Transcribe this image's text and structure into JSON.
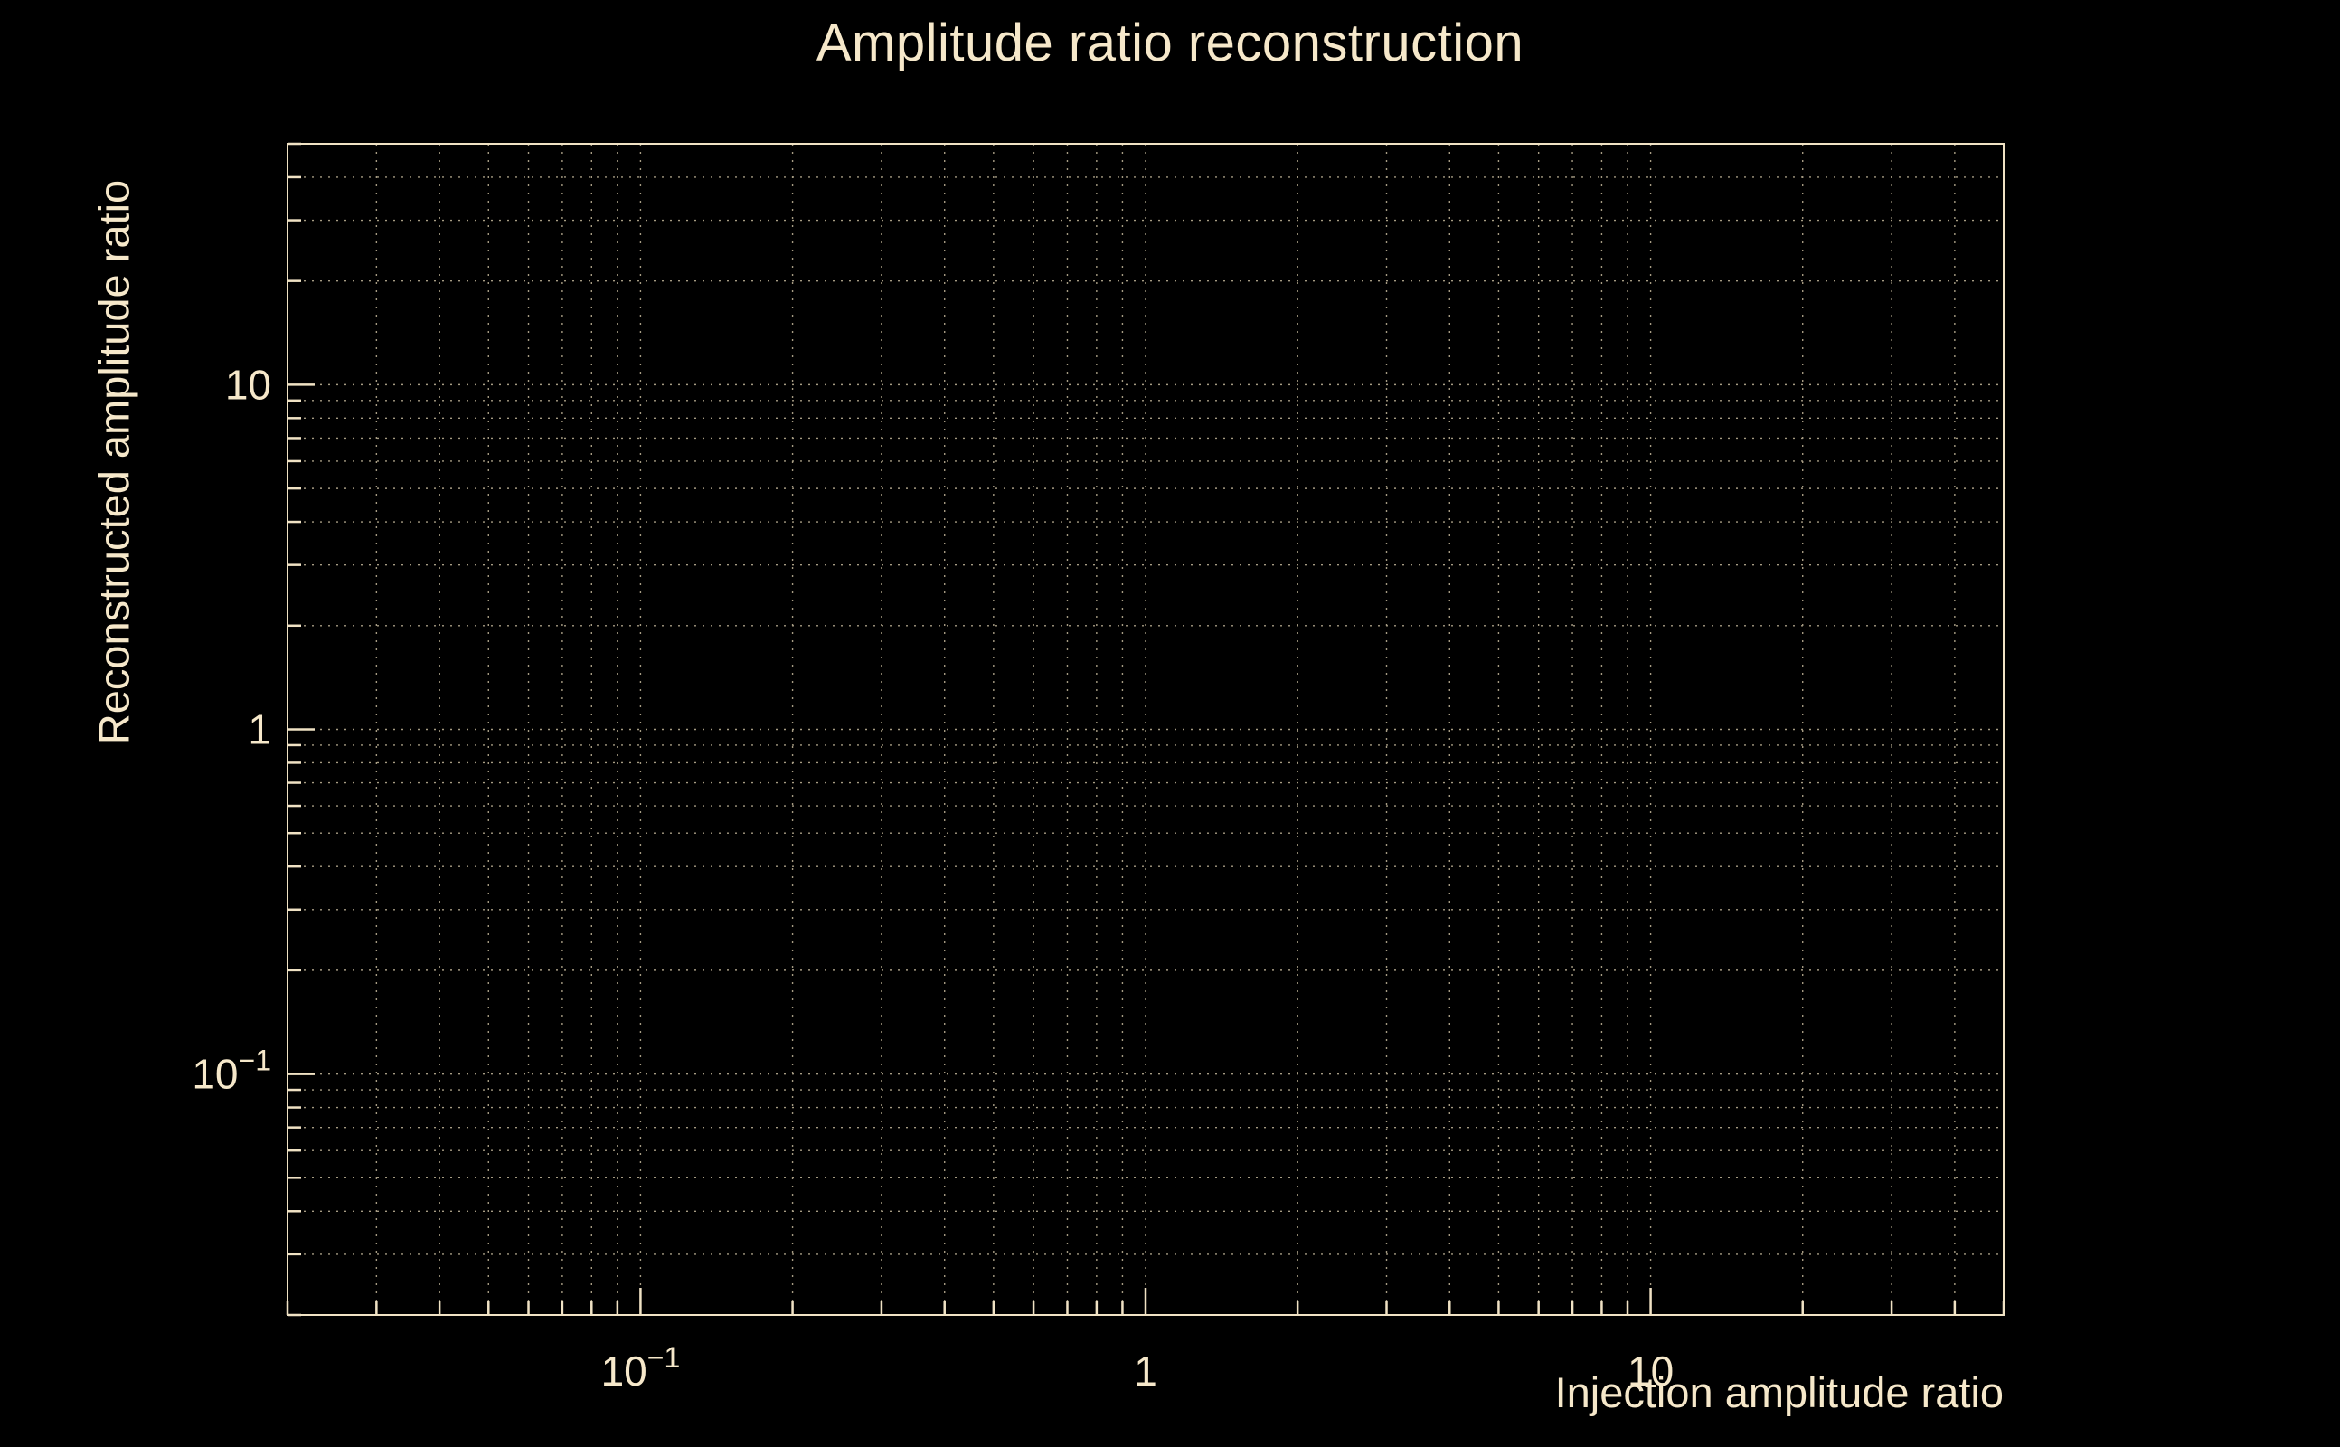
{
  "title": "Amplitude ratio reconstruction",
  "chart_data": {
    "type": "scatter",
    "title": "Amplitude ratio reconstruction",
    "xlabel": "Injection amplitude ratio",
    "ylabel": "Reconstructed amplitude ratio",
    "xscale": "log",
    "yscale": "log",
    "xlim": [
      0.02,
      50
    ],
    "ylim": [
      0.02,
      50
    ],
    "x_ticks": [
      {
        "value": 0.1,
        "label": "10^-1"
      },
      {
        "value": 1,
        "label": "1"
      },
      {
        "value": 10,
        "label": "10"
      }
    ],
    "y_ticks": [
      {
        "value": 0.1,
        "label": "10^-1"
      },
      {
        "value": 1,
        "label": "1"
      },
      {
        "value": 10,
        "label": "10"
      }
    ],
    "grid": {
      "major": true,
      "minor": true,
      "style": "dotted"
    },
    "legend": null,
    "series": [],
    "colors": {
      "background": "#000000",
      "text": "#f6e8ca",
      "grid": "#b9ad92",
      "frame": "#f0e2c4"
    }
  }
}
